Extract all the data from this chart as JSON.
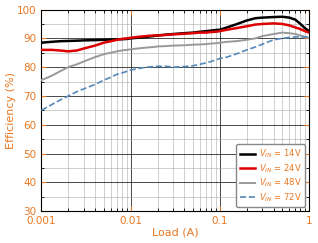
{
  "xlabel": "Load (A)",
  "ylabel": "Efficiency (%)",
  "xlim": [
    0.001,
    1.0
  ],
  "ylim": [
    30,
    100
  ],
  "yticks": [
    30,
    40,
    50,
    60,
    70,
    80,
    90,
    100
  ],
  "series": [
    {
      "label": "V_IN = 14V",
      "color": "#000000",
      "linewidth": 1.8,
      "linestyle": "solid",
      "x": [
        0.001,
        0.0013,
        0.0016,
        0.002,
        0.0025,
        0.003,
        0.004,
        0.005,
        0.006,
        0.007,
        0.008,
        0.009,
        0.01,
        0.012,
        0.015,
        0.018,
        0.02,
        0.025,
        0.03,
        0.04,
        0.05,
        0.06,
        0.07,
        0.08,
        0.09,
        0.1,
        0.12,
        0.15,
        0.2,
        0.25,
        0.3,
        0.4,
        0.5,
        0.6,
        0.7,
        0.8,
        0.9,
        1.0
      ],
      "y": [
        88.5,
        88.8,
        89.0,
        89.1,
        89.2,
        89.3,
        89.4,
        89.5,
        89.6,
        89.7,
        89.7,
        89.8,
        90.0,
        90.2,
        90.5,
        90.8,
        91.0,
        91.3,
        91.5,
        91.8,
        92.0,
        92.3,
        92.5,
        92.7,
        92.9,
        93.0,
        93.8,
        94.8,
        96.2,
        97.0,
        97.2,
        97.4,
        97.5,
        97.2,
        96.5,
        95.0,
        93.5,
        92.5
      ]
    },
    {
      "label": "V_IN = 24V",
      "color": "#dd0000",
      "linewidth": 1.8,
      "linestyle": "solid",
      "x": [
        0.001,
        0.0013,
        0.0016,
        0.002,
        0.0025,
        0.003,
        0.004,
        0.005,
        0.006,
        0.007,
        0.008,
        0.009,
        0.01,
        0.012,
        0.015,
        0.018,
        0.02,
        0.025,
        0.03,
        0.04,
        0.05,
        0.06,
        0.07,
        0.08,
        0.09,
        0.1,
        0.12,
        0.15,
        0.2,
        0.25,
        0.3,
        0.4,
        0.5,
        0.6,
        0.7,
        0.8,
        0.9,
        1.0
      ],
      "y": [
        86.0,
        86.0,
        85.8,
        85.5,
        85.8,
        86.5,
        87.5,
        88.5,
        89.0,
        89.5,
        89.8,
        90.0,
        90.2,
        90.5,
        90.8,
        91.0,
        91.0,
        91.2,
        91.4,
        91.6,
        91.8,
        92.0,
        92.0,
        92.2,
        92.3,
        92.5,
        93.0,
        93.5,
        94.2,
        94.8,
        95.0,
        95.2,
        95.0,
        94.5,
        93.8,
        93.2,
        92.5,
        92.0
      ]
    },
    {
      "label": "V_IN = 48V",
      "color": "#999999",
      "linewidth": 1.4,
      "linestyle": "solid",
      "x": [
        0.001,
        0.0013,
        0.0016,
        0.002,
        0.0025,
        0.003,
        0.004,
        0.005,
        0.006,
        0.007,
        0.008,
        0.009,
        0.01,
        0.012,
        0.015,
        0.018,
        0.02,
        0.025,
        0.03,
        0.04,
        0.05,
        0.06,
        0.07,
        0.08,
        0.09,
        0.1,
        0.12,
        0.15,
        0.2,
        0.25,
        0.3,
        0.4,
        0.5,
        0.6,
        0.7,
        0.8,
        0.9,
        1.0
      ],
      "y": [
        75.5,
        77.0,
        78.5,
        80.0,
        81.0,
        82.0,
        83.5,
        84.5,
        85.0,
        85.5,
        85.8,
        86.0,
        86.2,
        86.5,
        86.8,
        87.0,
        87.2,
        87.3,
        87.5,
        87.6,
        87.8,
        87.9,
        88.0,
        88.2,
        88.3,
        88.5,
        88.8,
        89.0,
        89.5,
        90.0,
        90.8,
        91.5,
        92.0,
        91.8,
        91.5,
        91.0,
        90.5,
        90.0
      ]
    },
    {
      "label": "V_IN = 72V",
      "color": "#5588bb",
      "linewidth": 1.2,
      "linestyle": "dashed",
      "x": [
        0.001,
        0.0013,
        0.0016,
        0.002,
        0.0025,
        0.003,
        0.004,
        0.005,
        0.006,
        0.007,
        0.008,
        0.009,
        0.01,
        0.012,
        0.015,
        0.018,
        0.02,
        0.025,
        0.03,
        0.04,
        0.05,
        0.06,
        0.07,
        0.08,
        0.09,
        0.1,
        0.12,
        0.15,
        0.2,
        0.25,
        0.3,
        0.4,
        0.5,
        0.6,
        0.7,
        0.8,
        0.9,
        1.0
      ],
      "y": [
        65.0,
        67.0,
        68.5,
        70.0,
        71.5,
        72.5,
        74.0,
        75.5,
        76.5,
        77.5,
        78.0,
        78.5,
        79.0,
        79.5,
        80.0,
        80.2,
        80.3,
        80.3,
        80.0,
        80.2,
        80.5,
        81.0,
        81.5,
        82.0,
        82.5,
        83.0,
        83.5,
        84.5,
        86.0,
        87.0,
        88.0,
        89.5,
        90.0,
        90.3,
        90.5,
        90.5,
        90.5,
        90.5
      ]
    }
  ],
  "axis_label_color": "#e87722",
  "tick_label_color_x": "#e87722",
  "tick_label_color_y": "#e87722",
  "background_color": "#ffffff",
  "grid_major_color": "#000000",
  "grid_minor_color": "#aaaaaa",
  "legend_text_color": "#000000",
  "legend_label_color": "#e87722"
}
